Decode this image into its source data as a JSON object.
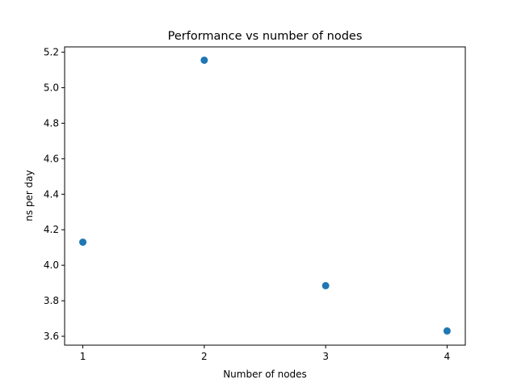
{
  "chart_data": {
    "type": "scatter",
    "title": "Performance vs number of nodes",
    "xlabel": "Number of nodes",
    "ylabel": "ns per day",
    "x": [
      1,
      2,
      3,
      4
    ],
    "y": [
      4.13,
      5.155,
      3.885,
      3.63
    ],
    "xlim": [
      0.85,
      4.15
    ],
    "ylim": [
      3.55,
      5.23
    ],
    "xticks": [
      1,
      2,
      3,
      4
    ],
    "xtick_labels": [
      "1",
      "2",
      "3",
      "4"
    ],
    "yticks": [
      3.6,
      3.8,
      4.0,
      4.2,
      4.4,
      4.6,
      4.8,
      5.0,
      5.2
    ],
    "ytick_labels": [
      "3.6",
      "3.8",
      "4.0",
      "4.2",
      "4.4",
      "4.6",
      "4.8",
      "5.0",
      "5.2"
    ],
    "marker_color": "#1f77b4",
    "grid": false,
    "legend": false
  }
}
